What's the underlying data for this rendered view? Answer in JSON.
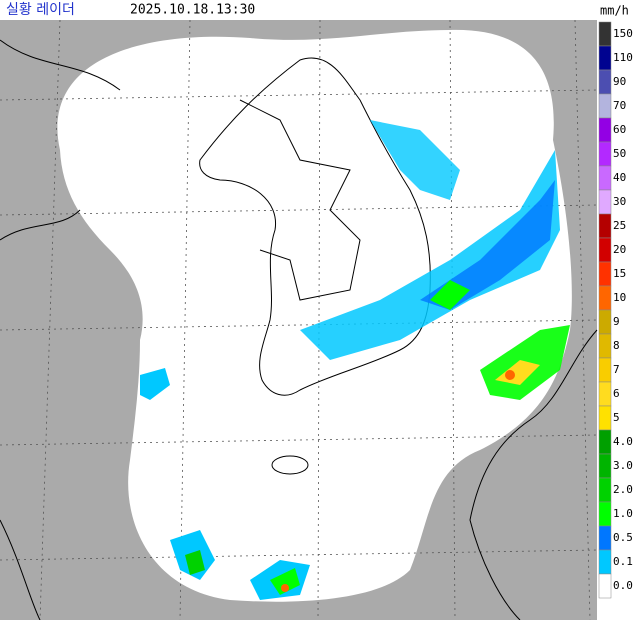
{
  "header": {
    "title": "실황 레이더",
    "time": "2025.10.18.13:30",
    "unit": "mm/h"
  },
  "legend": {
    "labels": [
      "150",
      "110",
      "90",
      "70",
      "60",
      "50",
      "40",
      "30",
      "25",
      "20",
      "15",
      "10",
      "9",
      "8",
      "7",
      "6",
      "5",
      "4.0",
      "3.0",
      "2.0",
      "1.0",
      "0.5",
      "0.1",
      "0.0"
    ],
    "colors": [
      "#333333",
      "#000390",
      "#4c4eb1",
      "#b3b4de",
      "#9300e4",
      "#b329ff",
      "#c969ff",
      "#e0a9ff",
      "#b40000",
      "#d20000",
      "#ff3200",
      "#ff6600",
      "#ccaa00",
      "#e0b900",
      "#f9cd00",
      "#ffdc1f",
      "#ffe100",
      "#00a000",
      "#00b400",
      "#00d200",
      "#00ff00",
      "#0077ff",
      "#00c8ff",
      "#ffffff"
    ]
  }
}
